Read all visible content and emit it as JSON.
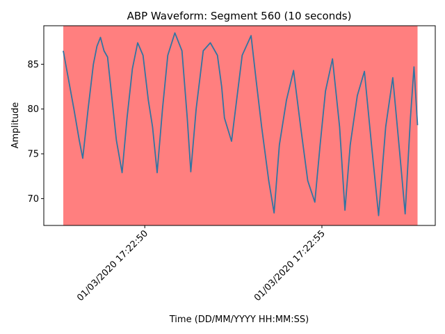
{
  "chart_data": {
    "type": "line",
    "title": "ABP Waveform: Segment 560 (10 seconds)",
    "xlabel": "Time (DD/MM/YYYY HH:MM:SS)",
    "ylabel": "Amplitude",
    "x_unit": "seconds after 01/03/2020 17:22:47",
    "xlim": [
      -0.55,
      10.5
    ],
    "ylim": [
      67.0,
      89.3
    ],
    "x_ticks": [
      {
        "value": 2.3,
        "label": "01/03/2020 17:22:50"
      },
      {
        "value": 7.3,
        "label": "01/03/2020 17:22:55"
      }
    ],
    "y_ticks": [
      70,
      75,
      80,
      85
    ],
    "grid": false,
    "shaded_region": {
      "x_start": 0.0,
      "x_end": 10.0,
      "color": "#ff0000",
      "opacity": 0.5
    },
    "series": [
      {
        "color": "#3274a1",
        "x": [
          0.0,
          0.3,
          0.45,
          0.55,
          0.7,
          0.85,
          0.95,
          1.05,
          1.15,
          1.25,
          1.5,
          1.66,
          1.8,
          1.95,
          2.1,
          2.25,
          2.4,
          2.52,
          2.65,
          2.8,
          2.95,
          3.15,
          3.35,
          3.5,
          3.6,
          3.75,
          3.95,
          4.15,
          4.35,
          4.47,
          4.55,
          4.75,
          5.05,
          5.3,
          5.45,
          5.6,
          5.8,
          5.95,
          6.1,
          6.3,
          6.5,
          6.7,
          6.9,
          7.1,
          7.25,
          7.4,
          7.6,
          7.8,
          7.95,
          8.1,
          8.3,
          8.5,
          8.7,
          8.9,
          9.1,
          9.3,
          9.5,
          9.65,
          9.8,
          9.9,
          10.0
        ],
        "y": [
          86.5,
          80.0,
          76.5,
          74.5,
          80.0,
          85.0,
          87.0,
          88.0,
          86.5,
          85.8,
          76.5,
          72.9,
          79.0,
          84.5,
          87.4,
          86.0,
          81.0,
          78.0,
          72.9,
          80.0,
          86.0,
          88.5,
          86.5,
          79.0,
          73.0,
          80.0,
          86.5,
          87.4,
          86.0,
          82.5,
          79.0,
          76.4,
          86.0,
          88.2,
          83.0,
          78.0,
          72.0,
          68.4,
          76.0,
          81.0,
          84.3,
          78.0,
          72.0,
          69.6,
          76.0,
          82.0,
          85.6,
          78.0,
          68.7,
          76.0,
          81.5,
          84.2,
          76.0,
          68.1,
          78.0,
          83.5,
          75.0,
          68.3,
          79.0,
          84.7,
          78.2
        ]
      }
    ]
  }
}
